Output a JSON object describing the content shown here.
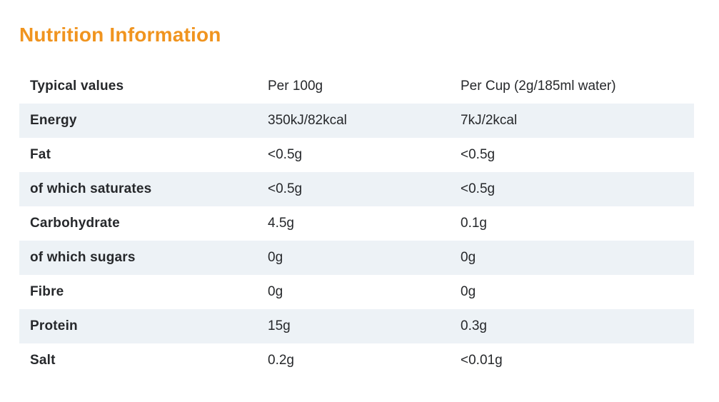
{
  "title": "Nutrition Information",
  "colors": {
    "title_orange": "#f0941f",
    "stripe": "#edf2f6",
    "text": "#26282b",
    "background": "#ffffff"
  },
  "table": {
    "header": {
      "col1": "Typical values",
      "col2": "Per 100g",
      "col3": "Per Cup (2g/185ml water)"
    },
    "rows": [
      {
        "label": "Energy",
        "per_100g": "350kJ/82kcal",
        "per_cup": "7kJ/2kcal"
      },
      {
        "label": "Fat",
        "per_100g": "<0.5g",
        "per_cup": "<0.5g"
      },
      {
        "label": "of which saturates",
        "per_100g": "<0.5g",
        "per_cup": "<0.5g"
      },
      {
        "label": "Carbohydrate",
        "per_100g": "4.5g",
        "per_cup": "0.1g"
      },
      {
        "label": "of which sugars",
        "per_100g": "0g",
        "per_cup": "0g"
      },
      {
        "label": "Fibre",
        "per_100g": "0g",
        "per_cup": "0g"
      },
      {
        "label": "Protein",
        "per_100g": "15g",
        "per_cup": "0.3g"
      },
      {
        "label": "Salt",
        "per_100g": "0.2g",
        "per_cup": "<0.01g"
      }
    ]
  }
}
